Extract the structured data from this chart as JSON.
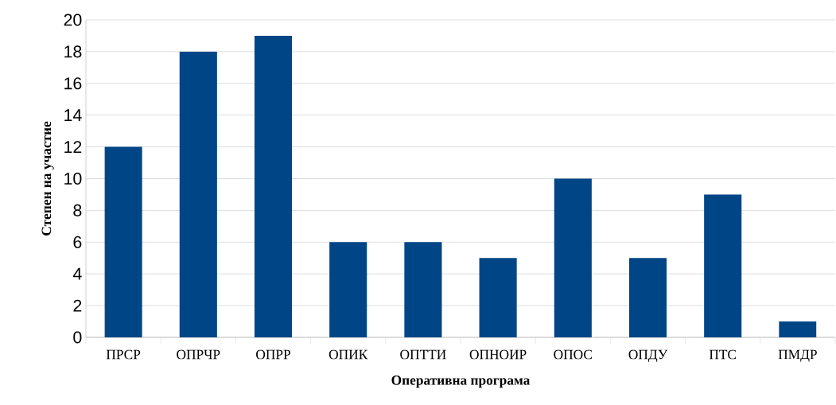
{
  "chart_data": {
    "type": "bar",
    "xlabel": "Оперативна програма",
    "ylabel": "Степен на участие",
    "categories": [
      "ПРСР",
      "ОПРЧР",
      "ОПРР",
      "ОПИК",
      "ОПТТИ",
      "ОПНОИР",
      "ОПОС",
      "ОПДУ",
      "ПТС",
      "ПМДР"
    ],
    "values": [
      12,
      18,
      19,
      6,
      6,
      5,
      10,
      5,
      9,
      1
    ],
    "color": "#004586",
    "ylim": [
      0,
      20
    ],
    "yticks": [
      0,
      2,
      4,
      6,
      8,
      10,
      12,
      14,
      16,
      18,
      20
    ],
    "grid": "y"
  }
}
